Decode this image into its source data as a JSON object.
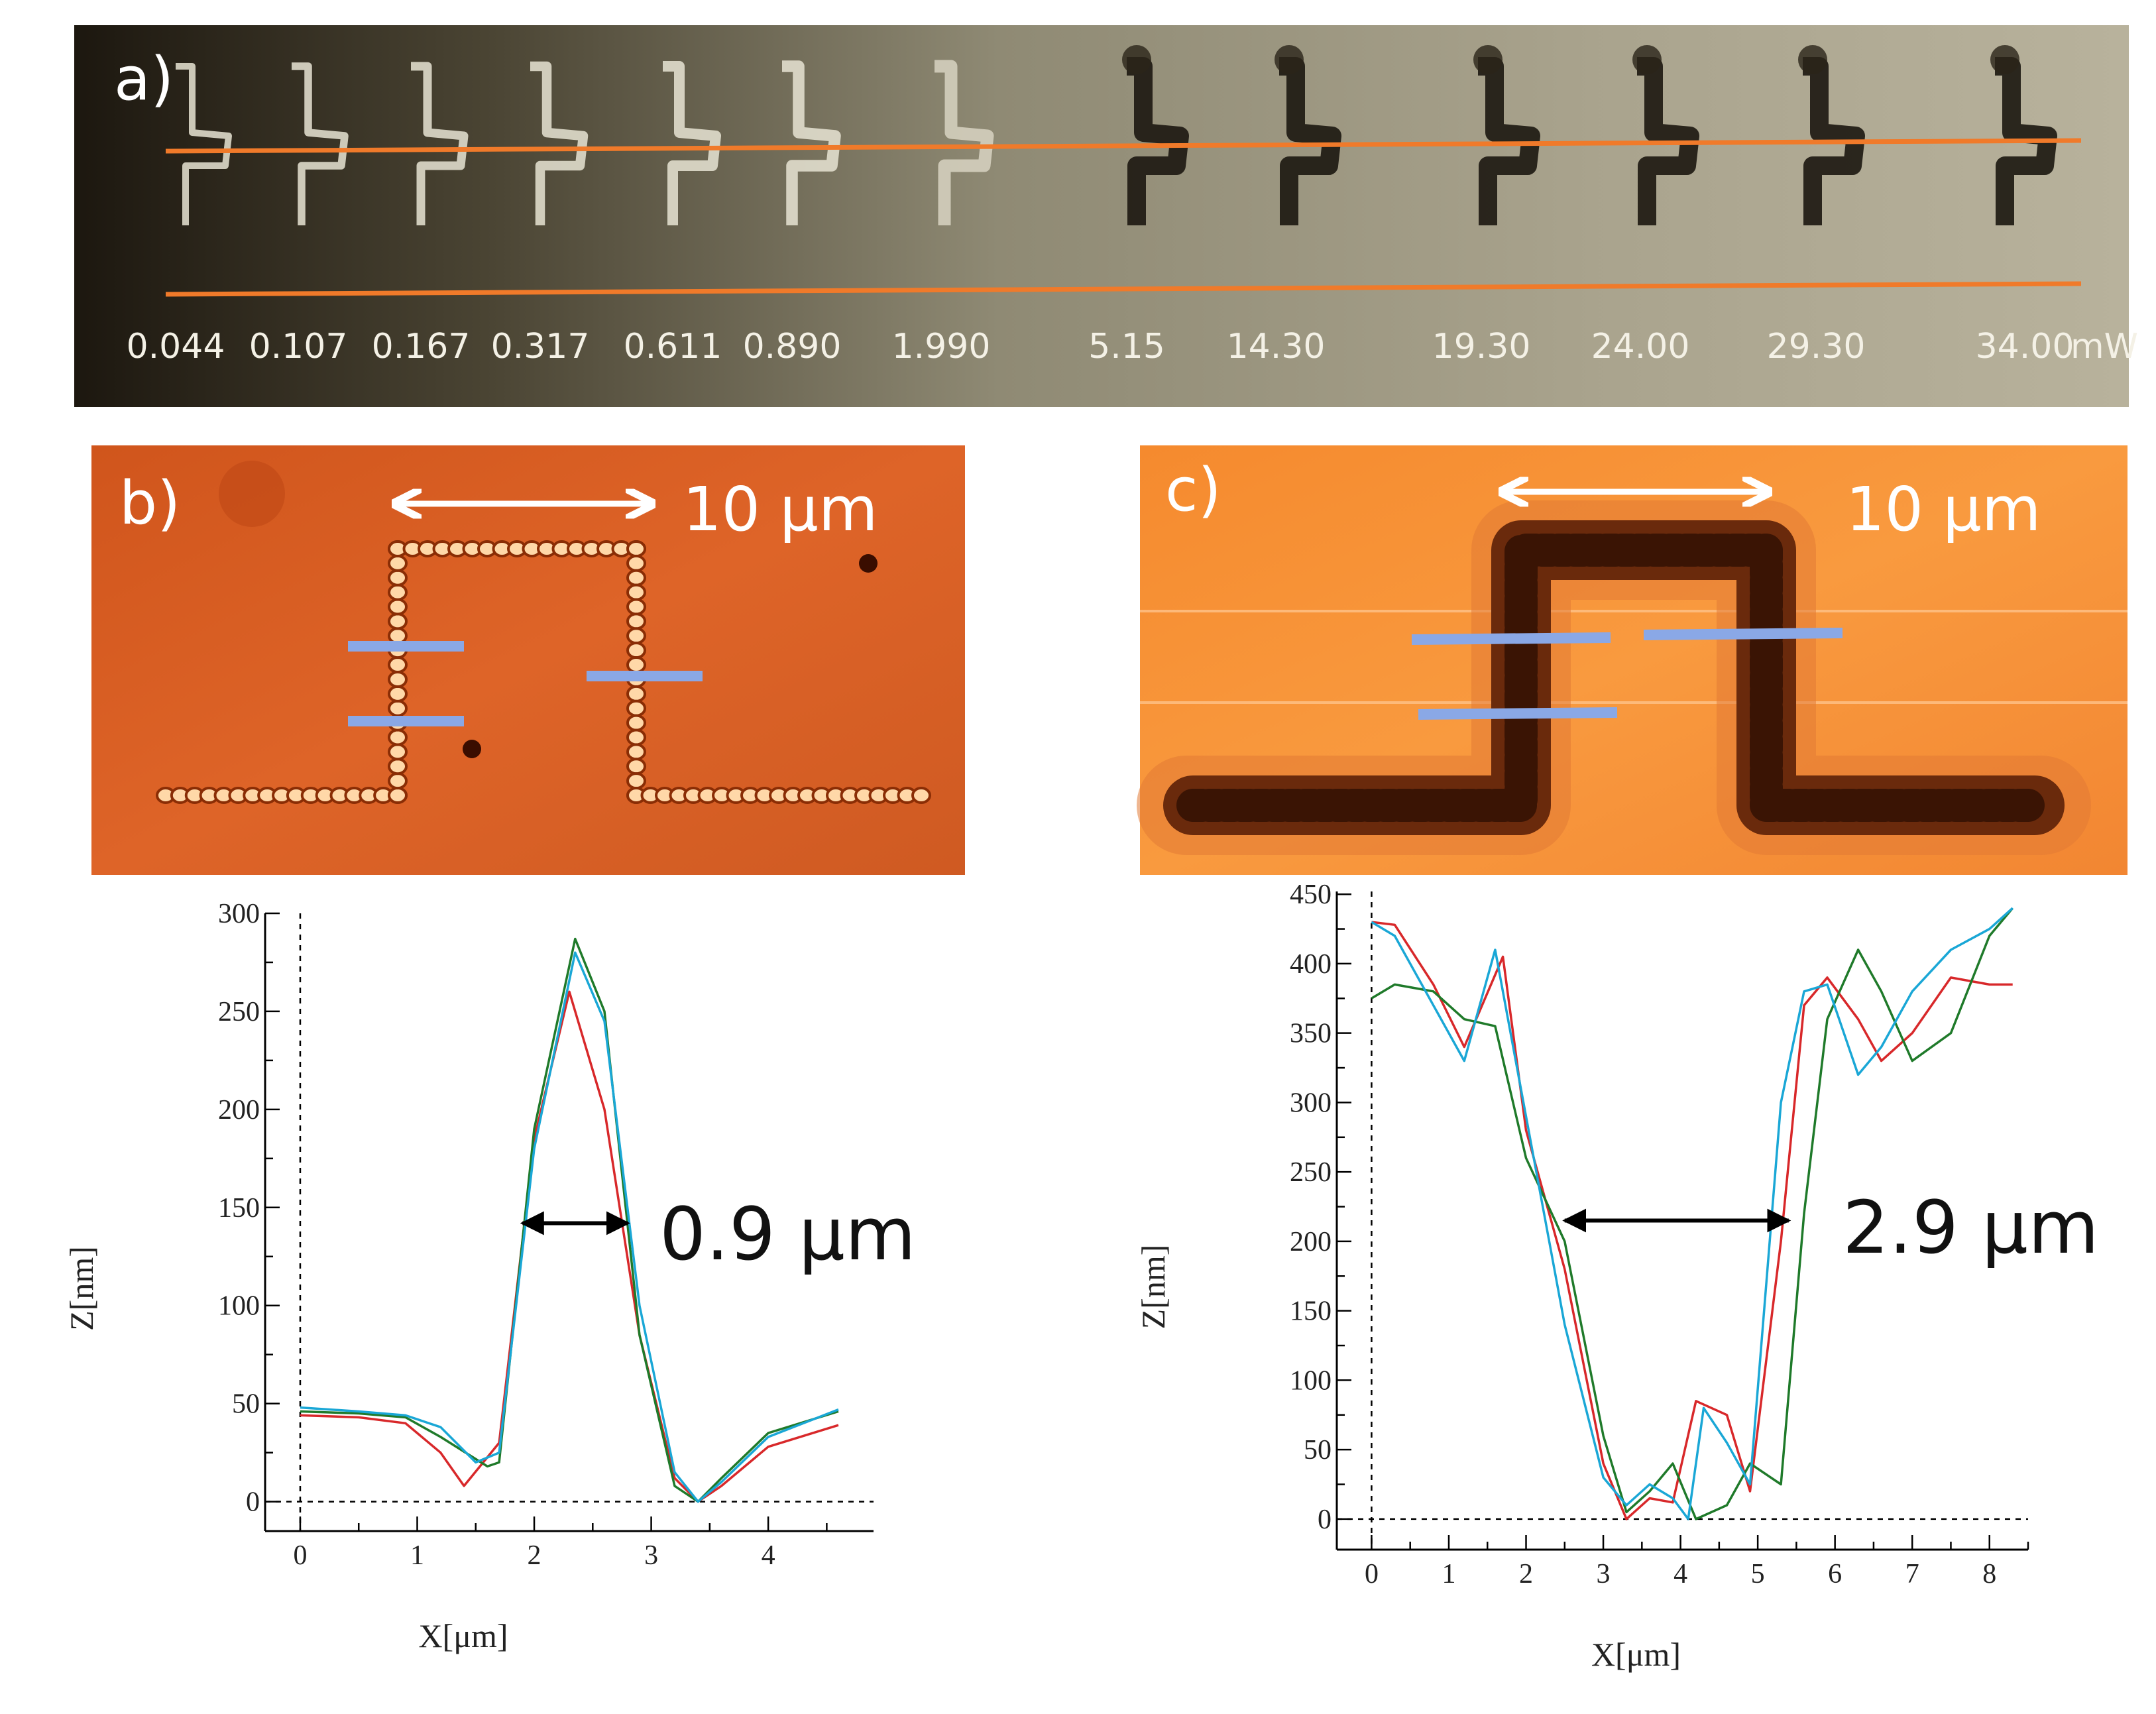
{
  "panel_a": {
    "label": "a)",
    "unit": "mW",
    "powers": [
      "0.044",
      "0.107",
      "0.167",
      "0.317",
      "0.611",
      "0.890",
      "1.990",
      "5.15",
      "14.30",
      "19.30",
      "24.00",
      "29.30",
      "34.00"
    ]
  },
  "panel_b": {
    "label": "b)",
    "scale_text": "10 μm"
  },
  "panel_c": {
    "label": "c)",
    "scale_text": "10 μm"
  },
  "colors": {
    "red": "#d8282a",
    "green": "#1f7a2a",
    "cyan": "#1aa7d6",
    "orange_line": "#f07a2a",
    "marker": "#8aa8e6"
  },
  "chart_data": [
    {
      "type": "line",
      "panel": "b",
      "xlabel": "X[μm]",
      "ylabel": "Z[nm]",
      "xlim": [
        -0.3,
        4.9
      ],
      "ylim": [
        -15,
        300
      ],
      "xticks": [
        0,
        1,
        2,
        3,
        4
      ],
      "yticks": [
        0,
        50,
        100,
        150,
        200,
        250,
        300
      ],
      "annotation": "0.9 μm",
      "width_arrow": {
        "x1": 1.9,
        "x2": 2.8,
        "y": 142
      },
      "series": [
        {
          "name": "red",
          "color": "#d8282a",
          "x": [
            0,
            0.5,
            0.9,
            1.2,
            1.4,
            1.7,
            2.0,
            2.3,
            2.6,
            2.9,
            3.2,
            3.4,
            3.6,
            4.0,
            4.6
          ],
          "y": [
            44,
            43,
            40,
            25,
            8,
            30,
            185,
            260,
            200,
            85,
            12,
            0,
            8,
            28,
            39
          ]
        },
        {
          "name": "green",
          "color": "#1f7a2a",
          "x": [
            0,
            0.5,
            0.9,
            1.2,
            1.6,
            1.7,
            2.0,
            2.35,
            2.6,
            2.9,
            3.2,
            3.4,
            3.6,
            4.0,
            4.6
          ],
          "y": [
            46,
            45,
            43,
            33,
            18,
            20,
            190,
            287,
            250,
            85,
            8,
            0,
            12,
            35,
            46
          ]
        },
        {
          "name": "cyan",
          "color": "#1aa7d6",
          "x": [
            0,
            0.5,
            0.9,
            1.2,
            1.5,
            1.7,
            2.0,
            2.35,
            2.6,
            2.9,
            3.2,
            3.4,
            3.6,
            4.0,
            4.6
          ],
          "y": [
            48,
            46,
            44,
            38,
            20,
            25,
            180,
            280,
            245,
            100,
            15,
            0,
            10,
            33,
            47
          ]
        }
      ]
    },
    {
      "type": "line",
      "panel": "c",
      "xlabel": "X[μm]",
      "ylabel": "Z[nm]",
      "xlim": [
        -0.45,
        8.5
      ],
      "ylim": [
        -22,
        452
      ],
      "xticks": [
        0,
        1,
        2,
        3,
        4,
        5,
        6,
        7,
        8
      ],
      "yticks": [
        0,
        50,
        100,
        150,
        200,
        250,
        300,
        350,
        400,
        450
      ],
      "annotation": "2.9 μm",
      "width_arrow": {
        "x1": 2.5,
        "x2": 5.4,
        "y": 215
      },
      "series": [
        {
          "name": "red",
          "color": "#d8282a",
          "x": [
            0,
            0.3,
            0.8,
            1.2,
            1.7,
            2.0,
            2.5,
            3.0,
            3.3,
            3.6,
            3.9,
            4.2,
            4.6,
            4.9,
            5.3,
            5.6,
            5.9,
            6.3,
            6.6,
            7.0,
            7.5,
            8.0,
            8.3
          ],
          "y": [
            430,
            428,
            385,
            340,
            405,
            280,
            180,
            40,
            0,
            15,
            12,
            85,
            75,
            20,
            200,
            370,
            390,
            360,
            330,
            350,
            390,
            385,
            385
          ]
        },
        {
          "name": "green",
          "color": "#1f7a2a",
          "x": [
            0,
            0.3,
            0.8,
            1.2,
            1.6,
            2.0,
            2.5,
            3.0,
            3.3,
            3.6,
            3.9,
            4.2,
            4.6,
            4.9,
            5.3,
            5.6,
            5.9,
            6.3,
            6.6,
            7.0,
            7.5,
            8.0,
            8.3
          ],
          "y": [
            375,
            385,
            380,
            360,
            355,
            260,
            200,
            60,
            5,
            20,
            40,
            0,
            10,
            40,
            25,
            220,
            360,
            410,
            380,
            330,
            350,
            420,
            440
          ]
        },
        {
          "name": "cyan",
          "color": "#1aa7d6",
          "x": [
            0,
            0.3,
            0.8,
            1.2,
            1.6,
            2.0,
            2.5,
            3.0,
            3.3,
            3.6,
            3.9,
            4.1,
            4.3,
            4.6,
            4.9,
            5.3,
            5.6,
            5.9,
            6.3,
            6.6,
            7.0,
            7.5,
            8.0,
            8.3
          ],
          "y": [
            430,
            420,
            370,
            330,
            410,
            290,
            140,
            30,
            10,
            25,
            15,
            0,
            80,
            55,
            25,
            300,
            380,
            385,
            320,
            340,
            380,
            410,
            425,
            440
          ]
        }
      ]
    }
  ]
}
